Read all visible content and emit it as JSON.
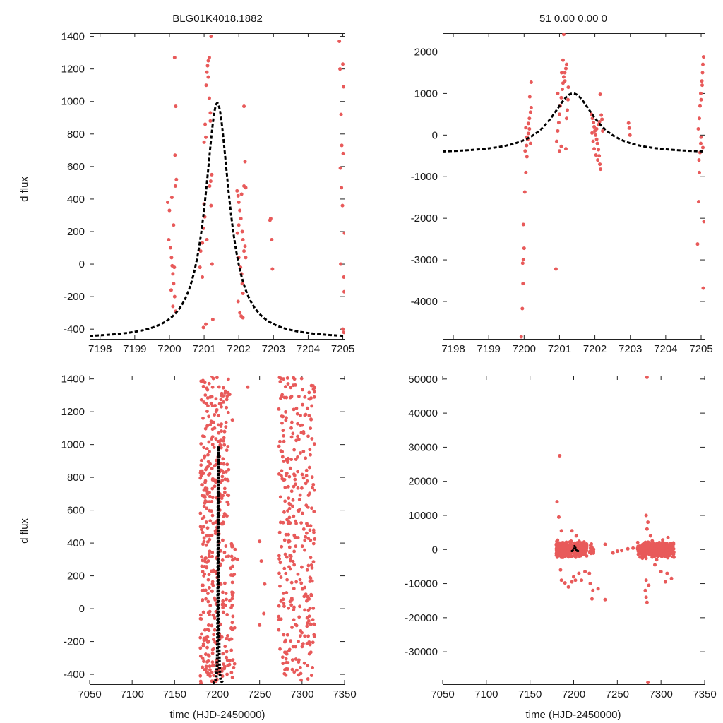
{
  "colors": {
    "points": "#e85a5a",
    "model": "#000000"
  },
  "chart_data": [
    {
      "id": "top-left",
      "type": "scatter",
      "title": "BLG01K4018.1882",
      "xlabel": "",
      "ylabel": "d flux",
      "xlim": [
        7197.7,
        7205.05
      ],
      "ylim": [
        -460,
        1420
      ],
      "xticks": [
        7198,
        7199,
        7200,
        7201,
        7202,
        7203,
        7204,
        7205
      ],
      "yticks": [
        -400,
        -200,
        0,
        200,
        400,
        600,
        800,
        1000,
        1200,
        1400
      ],
      "model": {
        "t0": 7201.38,
        "baseline": -460,
        "peak": 990,
        "width": 0.42,
        "degrade": 1
      },
      "points": [
        [
          7199.95,
          380
        ],
        [
          7200.0,
          330
        ],
        [
          7199.98,
          150
        ],
        [
          7200.03,
          100
        ],
        [
          7200.06,
          40
        ],
        [
          7200.08,
          -10
        ],
        [
          7200.1,
          -60
        ],
        [
          7200.12,
          -120
        ],
        [
          7200.05,
          -160
        ],
        [
          7200.15,
          -200
        ],
        [
          7200.1,
          -260
        ],
        [
          7200.18,
          -290
        ],
        [
          7200.07,
          410
        ],
        [
          7200.17,
          480
        ],
        [
          7200.2,
          520
        ],
        [
          7200.15,
          1270
        ],
        [
          7200.18,
          970
        ],
        [
          7200.16,
          670
        ],
        [
          7200.12,
          240
        ],
        [
          7200.14,
          -20
        ],
        [
          7200.88,
          -20
        ],
        [
          7200.9,
          80
        ],
        [
          7200.95,
          130
        ],
        [
          7200.98,
          220
        ],
        [
          7201.0,
          370
        ],
        [
          7201.02,
          290
        ],
        [
          7200.95,
          -80
        ],
        [
          7201.05,
          -370
        ],
        [
          7200.98,
          -390
        ],
        [
          7201.0,
          750
        ],
        [
          7201.03,
          860
        ],
        [
          7201.05,
          780
        ],
        [
          7201.06,
          1100
        ],
        [
          7201.08,
          1180
        ],
        [
          7201.1,
          1220
        ],
        [
          7201.12,
          1250
        ],
        [
          7201.15,
          1270
        ],
        [
          7201.12,
          1150
        ],
        [
          7201.15,
          1020
        ],
        [
          7201.18,
          930
        ],
        [
          7201.2,
          1400
        ],
        [
          7201.22,
          550
        ],
        [
          7201.19,
          510
        ],
        [
          7201.16,
          480
        ],
        [
          7201.2,
          360
        ],
        [
          7201.23,
          0
        ],
        [
          7201.25,
          -340
        ],
        [
          7201.08,
          150
        ],
        [
          7201.18,
          880
        ],
        [
          7201.95,
          450
        ],
        [
          7201.98,
          420
        ],
        [
          7202.0,
          380
        ],
        [
          7202.03,
          330
        ],
        [
          7202.06,
          280
        ],
        [
          7202.1,
          200
        ],
        [
          7202.12,
          150
        ],
        [
          7202.15,
          80
        ],
        [
          7202.0,
          40
        ],
        [
          7202.05,
          -20
        ],
        [
          7202.08,
          -60
        ],
        [
          7202.1,
          -120
        ],
        [
          7202.12,
          -180
        ],
        [
          7201.98,
          -230
        ],
        [
          7202.03,
          -300
        ],
        [
          7202.07,
          -320
        ],
        [
          7202.12,
          -330
        ],
        [
          7202.15,
          970
        ],
        [
          7202.18,
          630
        ],
        [
          7202.2,
          470
        ],
        [
          7202.2,
          40
        ],
        [
          7202.18,
          110
        ],
        [
          7201.96,
          190
        ],
        [
          7202.15,
          480
        ],
        [
          7202.08,
          430
        ],
        [
          7202.0,
          240
        ],
        [
          7202.9,
          270
        ],
        [
          7202.92,
          280
        ],
        [
          7202.95,
          150
        ],
        [
          7202.97,
          -30
        ],
        [
          7204.9,
          1370
        ],
        [
          7204.92,
          1200
        ],
        [
          7204.95,
          920
        ],
        [
          7204.97,
          730
        ],
        [
          7204.93,
          590
        ],
        [
          7204.96,
          470
        ],
        [
          7204.99,
          360
        ],
        [
          7205.0,
          1230
        ],
        [
          7205.02,
          1090
        ],
        [
          7205.03,
          -80
        ],
        [
          7205.04,
          -170
        ],
        [
          7204.94,
          0
        ],
        [
          7205.0,
          -400
        ],
        [
          7205.03,
          -420
        ],
        [
          7205.05,
          190
        ],
        [
          7205.01,
          680
        ]
      ]
    },
    {
      "id": "top-right",
      "type": "scatter",
      "title": "51  0.00  0.00  0",
      "xlabel": "",
      "ylabel": "",
      "xlim": [
        7197.7,
        7205.1
      ],
      "ylim": [
        -4900,
        2450
      ],
      "xticks": [
        7198,
        7199,
        7200,
        7201,
        7202,
        7203,
        7204,
        7205
      ],
      "yticks": [
        -4000,
        -3000,
        -2000,
        -1000,
        0,
        1000,
        2000
      ],
      "model": {
        "t0": 7201.38,
        "baseline": -450,
        "peak": 1000,
        "width": 0.75,
        "degrade": 1
      },
      "points": [
        [
          7199.92,
          -4850
        ],
        [
          7199.95,
          -4170
        ],
        [
          7199.97,
          -3570
        ],
        [
          7199.96,
          -3080
        ],
        [
          7199.98,
          -2990
        ],
        [
          7200.0,
          -2720
        ],
        [
          7199.98,
          -2150
        ],
        [
          7200.02,
          -1370
        ],
        [
          7200.05,
          -900
        ],
        [
          7200.08,
          -520
        ],
        [
          7200.03,
          -380
        ],
        [
          7200.07,
          -250
        ],
        [
          7200.1,
          -100
        ],
        [
          7200.12,
          40
        ],
        [
          7200.15,
          150
        ],
        [
          7200.05,
          180
        ],
        [
          7200.12,
          280
        ],
        [
          7200.15,
          400
        ],
        [
          7200.18,
          550
        ],
        [
          7200.2,
          660
        ],
        [
          7200.16,
          920
        ],
        [
          7200.2,
          1270
        ],
        [
          7200.08,
          -50
        ],
        [
          7200.18,
          -200
        ],
        [
          7200.9,
          -3220
        ],
        [
          7200.92,
          -150
        ],
        [
          7200.95,
          100
        ],
        [
          7200.98,
          300
        ],
        [
          7201.0,
          500
        ],
        [
          7201.02,
          700
        ],
        [
          7201.05,
          900
        ],
        [
          7201.08,
          1100
        ],
        [
          7201.1,
          1250
        ],
        [
          7201.12,
          1400
        ],
        [
          7201.15,
          1500
        ],
        [
          7201.18,
          1600
        ],
        [
          7201.2,
          1700
        ],
        [
          7201.1,
          1800
        ],
        [
          7201.12,
          2420
        ],
        [
          7201.15,
          1300
        ],
        [
          7201.0,
          -380
        ],
        [
          7201.05,
          -270
        ],
        [
          7201.18,
          -330
        ],
        [
          7201.2,
          400
        ],
        [
          7201.22,
          600
        ],
        [
          7201.24,
          850
        ],
        [
          7201.25,
          1150
        ],
        [
          7200.95,
          1000
        ],
        [
          7201.06,
          1500
        ],
        [
          7201.9,
          500
        ],
        [
          7201.93,
          400
        ],
        [
          7201.96,
          300
        ],
        [
          7201.98,
          200
        ],
        [
          7202.0,
          100
        ],
        [
          7202.02,
          0
        ],
        [
          7202.05,
          -100
        ],
        [
          7202.07,
          -200
        ],
        [
          7202.1,
          -350
        ],
        [
          7202.12,
          -500
        ],
        [
          7202.14,
          -700
        ],
        [
          7202.16,
          -820
        ],
        [
          7201.95,
          -150
        ],
        [
          7201.98,
          -330
        ],
        [
          7202.03,
          -480
        ],
        [
          7202.08,
          -600
        ],
        [
          7202.1,
          250
        ],
        [
          7202.13,
          320
        ],
        [
          7202.15,
          980
        ],
        [
          7202.18,
          480
        ],
        [
          7202.2,
          380
        ],
        [
          7202.22,
          100
        ],
        [
          7202.05,
          150
        ],
        [
          7201.92,
          50
        ],
        [
          7202.95,
          290
        ],
        [
          7202.97,
          170
        ],
        [
          7202.99,
          0
        ],
        [
          7204.9,
          -2620
        ],
        [
          7204.93,
          -1600
        ],
        [
          7204.95,
          -900
        ],
        [
          7204.97,
          -420
        ],
        [
          7204.99,
          -200
        ],
        [
          7205.0,
          -50
        ],
        [
          7204.92,
          150
        ],
        [
          7204.95,
          400
        ],
        [
          7204.97,
          700
        ],
        [
          7204.99,
          1000
        ],
        [
          7205.02,
          1300
        ],
        [
          7205.04,
          1500
        ],
        [
          7205.05,
          1700
        ],
        [
          7205.07,
          1880
        ],
        [
          7205.08,
          -2080
        ],
        [
          7205.06,
          -3680
        ],
        [
          7205.03,
          1200
        ],
        [
          7205.0,
          850
        ],
        [
          7204.94,
          -600
        ],
        [
          7205.05,
          -300
        ]
      ]
    },
    {
      "id": "bottom-left",
      "type": "scatter",
      "title": "",
      "xlabel": "time (HJD-2450000)",
      "ylabel": "d flux",
      "xlim": [
        7050,
        7350
      ],
      "ylim": [
        -460,
        1420
      ],
      "xticks": [
        7050,
        7100,
        7150,
        7200,
        7250,
        7300,
        7350
      ],
      "yticks": [
        -400,
        -200,
        0,
        200,
        400,
        600,
        800,
        1000,
        1200,
        1400
      ],
      "model": {
        "t0": 7201.38,
        "baseline": -460,
        "peak": 990,
        "width": 0.42,
        "degrade": 2
      },
      "clusters": [
        {
          "xmin": 7180,
          "xmax": 7192,
          "ymin": -460,
          "ymax": 1400,
          "n": 170,
          "seed": 11
        },
        {
          "xmin": 7193,
          "xmax": 7215,
          "ymin": -460,
          "ymax": 1420,
          "n": 230,
          "seed": 23
        },
        {
          "xmin": 7216,
          "xmax": 7222,
          "ymin": -420,
          "ymax": 400,
          "n": 35,
          "seed": 37
        },
        {
          "xmin": 7272,
          "xmax": 7315,
          "ymin": -440,
          "ymax": 1410,
          "n": 330,
          "seed": 41
        }
      ],
      "points": [
        [
          7236,
          1350
        ],
        [
          7250,
          410
        ],
        [
          7252,
          290
        ],
        [
          7256,
          150
        ],
        [
          7250,
          -100
        ],
        [
          7255,
          -30
        ],
        [
          7224,
          300
        ],
        [
          7218,
          1150
        ]
      ]
    },
    {
      "id": "bottom-right",
      "type": "scatter",
      "title": "",
      "xlabel": "time (HJD-2450000)",
      "ylabel": "",
      "xlim": [
        7050,
        7350
      ],
      "ylim": [
        -39500,
        51000
      ],
      "xticks": [
        7050,
        7100,
        7150,
        7200,
        7250,
        7300,
        7350
      ],
      "yticks": [
        -30000,
        -20000,
        -10000,
        0,
        10000,
        20000,
        30000,
        40000,
        50000
      ],
      "model": {
        "t0": 7201.38,
        "baseline": -450,
        "peak": 1000,
        "width": 0.75,
        "degrade": 3
      },
      "clusters": [
        {
          "xmin": 7180,
          "xmax": 7192,
          "ymin": -2200,
          "ymax": 2200,
          "n": 220,
          "seed": 5
        },
        {
          "xmin": 7193,
          "xmax": 7215,
          "ymin": -2200,
          "ymax": 2200,
          "n": 260,
          "seed": 17
        },
        {
          "xmin": 7218,
          "xmax": 7223,
          "ymin": -1500,
          "ymax": 1500,
          "n": 30,
          "seed": 29
        },
        {
          "xmin": 7273,
          "xmax": 7315,
          "ymin": -2200,
          "ymax": 2200,
          "n": 360,
          "seed": 31
        }
      ],
      "points": [
        [
          7184,
          27500
        ],
        [
          7181,
          14000
        ],
        [
          7183,
          9500
        ],
        [
          7186,
          5500
        ],
        [
          7185,
          -6000
        ],
        [
          7186,
          -9000
        ],
        [
          7190,
          -9800
        ],
        [
          7194,
          -11000
        ],
        [
          7198,
          -9500
        ],
        [
          7200,
          -8000
        ],
        [
          7202,
          -9000
        ],
        [
          7198,
          5500
        ],
        [
          7203,
          4000
        ],
        [
          7206,
          -7000
        ],
        [
          7209,
          -9000
        ],
        [
          7213,
          -6500
        ],
        [
          7219,
          -10000
        ],
        [
          7221,
          -14500
        ],
        [
          7222,
          -12000
        ],
        [
          7218,
          -7000
        ],
        [
          7228,
          -11500
        ],
        [
          7236,
          -14700
        ],
        [
          7236,
          1500
        ],
        [
          7245,
          -1000
        ],
        [
          7250,
          -500
        ],
        [
          7255,
          -300
        ],
        [
          7262,
          200
        ],
        [
          7268,
          400
        ],
        [
          7284,
          50500
        ],
        [
          7285,
          -39000
        ],
        [
          7284,
          -15500
        ],
        [
          7283,
          -14000
        ],
        [
          7282,
          -12000
        ],
        [
          7283,
          10000
        ],
        [
          7285,
          8000
        ],
        [
          7284,
          6000
        ],
        [
          7283,
          -9000
        ],
        [
          7286,
          -10500
        ],
        [
          7288,
          4000
        ],
        [
          7295,
          -3000
        ],
        [
          7300,
          -6500
        ],
        [
          7305,
          -9500
        ],
        [
          7307,
          -7000
        ],
        [
          7312,
          -8500
        ],
        [
          7308,
          3500
        ],
        [
          7290,
          2500
        ],
        [
          7293,
          -4500
        ],
        [
          7302,
          2800
        ]
      ],
      "center_marks": [
        [
          7199,
          -300
        ],
        [
          7200,
          300
        ],
        [
          7201,
          1000
        ],
        [
          7202,
          500
        ],
        [
          7203,
          -200
        ],
        [
          7204,
          -400
        ],
        [
          7198,
          -450
        ],
        [
          7205,
          -450
        ]
      ]
    }
  ]
}
